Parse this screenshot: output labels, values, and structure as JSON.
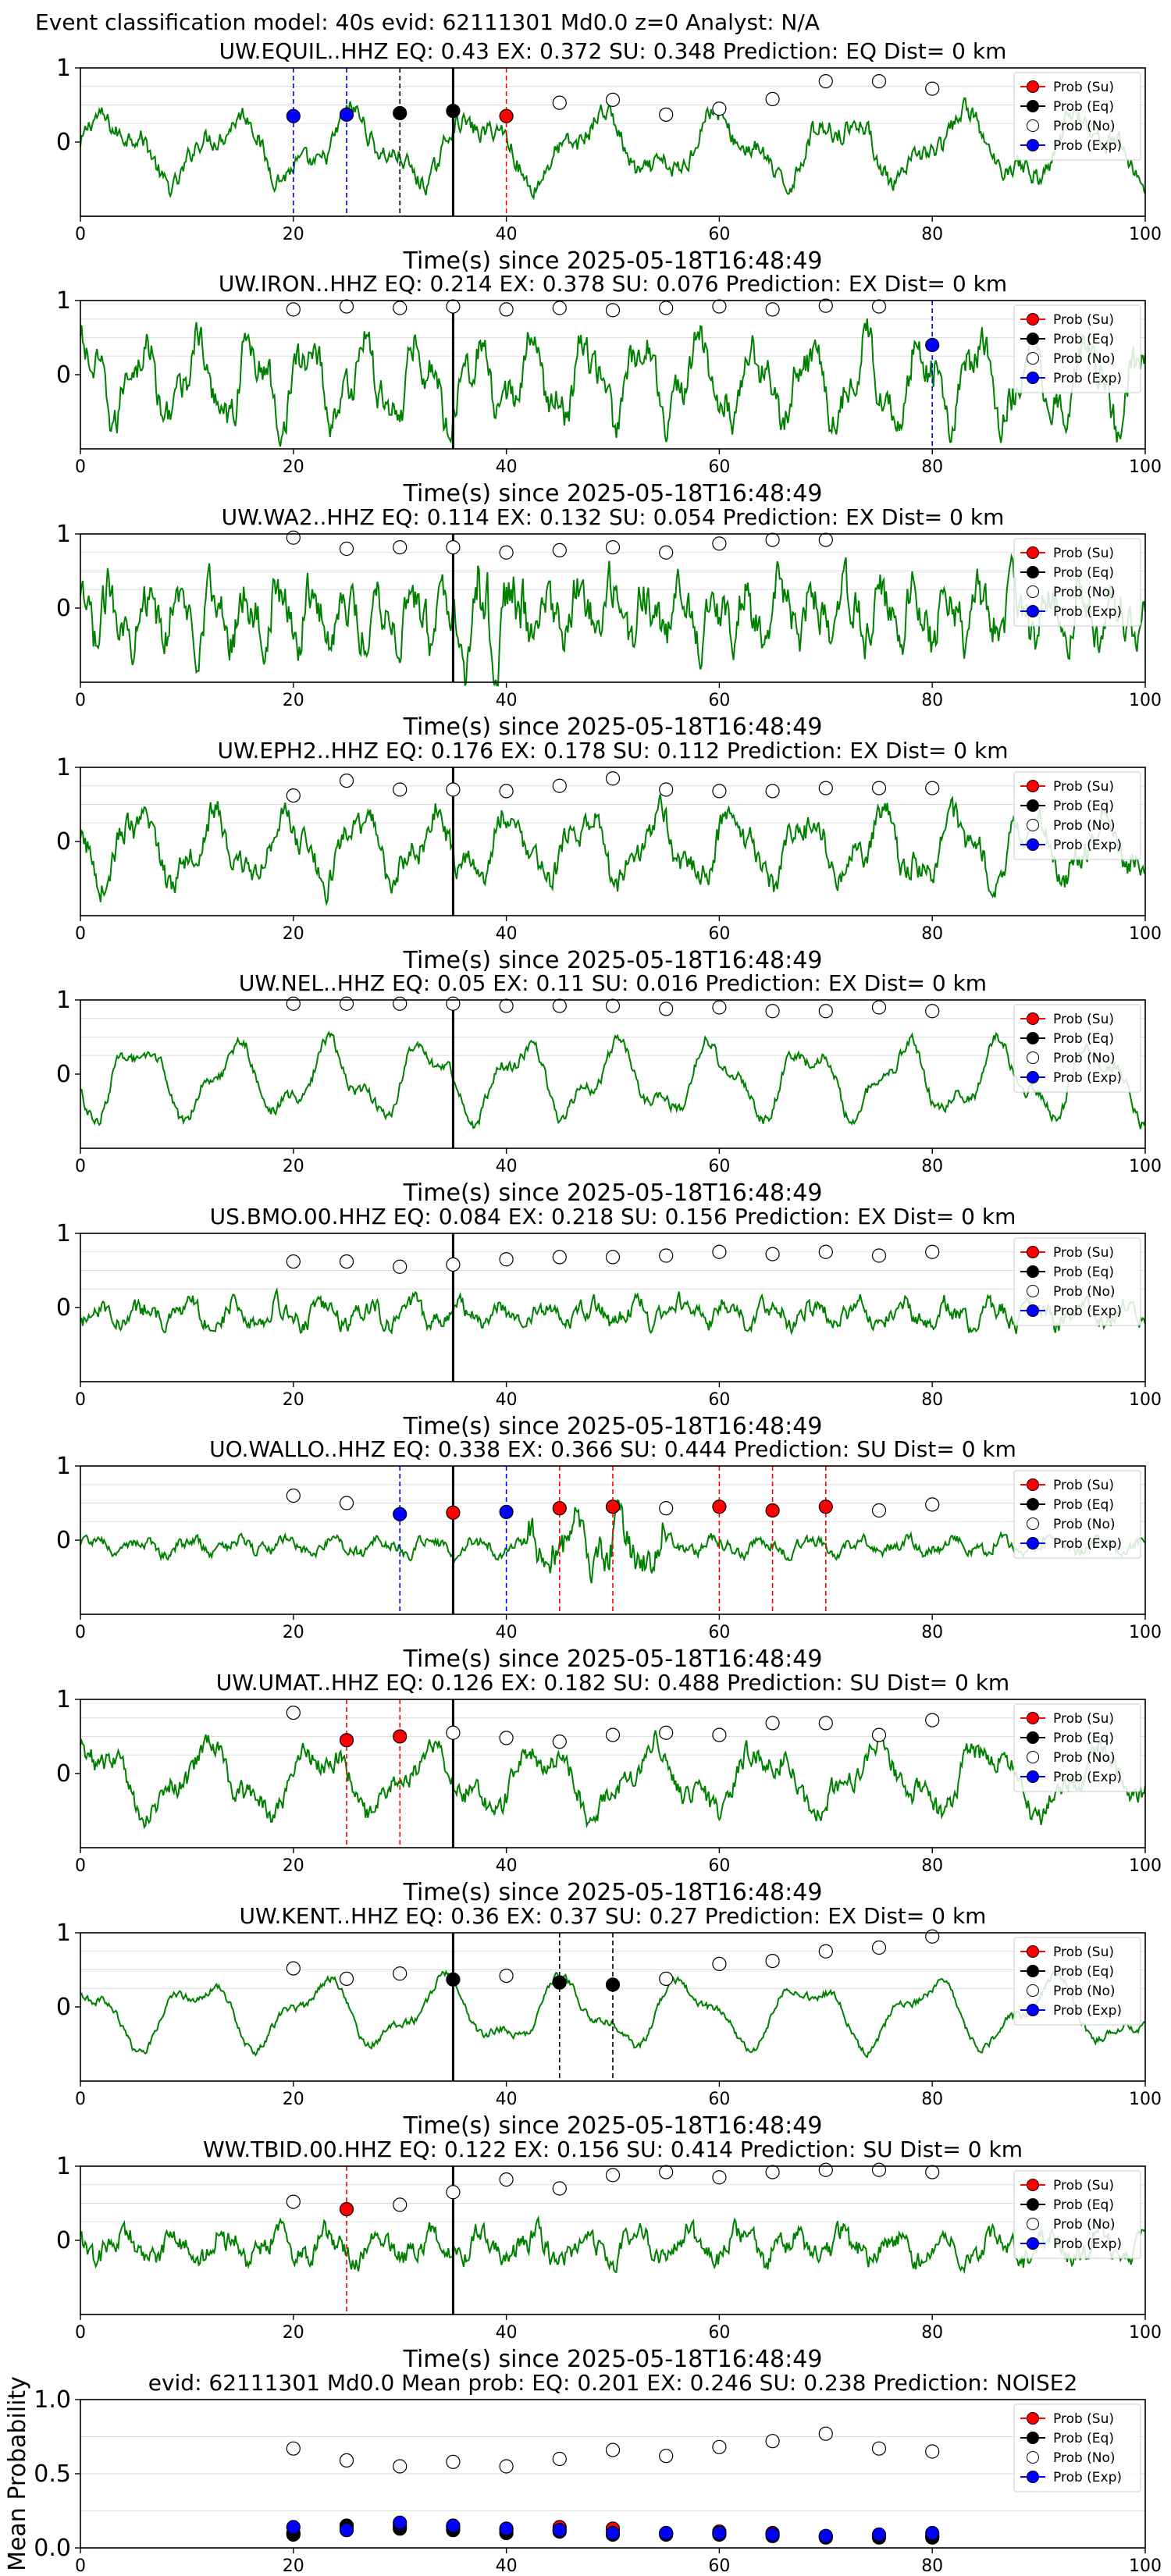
{
  "figure_title": "Event classification model: 40s evid: 62111301 Md0.0 z=0 Analyst: N/A",
  "legend_labels": [
    "Prob (Su)",
    "Prob (Eq)",
    "Prob (No)",
    "Prob (Exp)"
  ],
  "colors": {
    "waveform": "#008000",
    "su": "#ff0000",
    "eq": "#000000",
    "no": "#ffffff",
    "exp": "#0000ff",
    "ex_line": "#0000ff",
    "su_line": "#ff0000",
    "eq_line": "#000000",
    "grid": "#dddddd"
  },
  "chart_data": [
    {
      "type": "line",
      "station": "UW.EQUIL..HHZ",
      "title": "UW.EQUIL..HHZ    EQ: 0.43   EX: 0.372   SU: 0.348    Prediction: EQ     Dist= 0 km",
      "xlabel": "Time(s) since 2025-05-18T16:48:49",
      "xlim": [
        0,
        100
      ],
      "ylim": [
        -1,
        1
      ],
      "yticks": [
        "1",
        "0"
      ],
      "xticks": [
        "0",
        "20",
        "40",
        "60",
        "80",
        "100"
      ],
      "origin_line": 35,
      "legend": "top-right",
      "prob": {
        "x": [
          20,
          25,
          30,
          35,
          40,
          45,
          50,
          55,
          60,
          65,
          70,
          75,
          80
        ],
        "class": [
          "exp",
          "exp",
          "eq",
          "eq",
          "su",
          "no",
          "no",
          "no",
          "no",
          "no",
          "no",
          "no",
          "no"
        ],
        "y": [
          0.35,
          0.37,
          0.39,
          0.42,
          0.35,
          0.53,
          0.57,
          0.37,
          0.45,
          0.58,
          0.82,
          0.82,
          0.72
        ]
      },
      "markers": [
        {
          "x": 20,
          "type": "exp"
        },
        {
          "x": 25,
          "type": "exp"
        },
        {
          "x": 30,
          "type": "eq"
        },
        {
          "x": 35,
          "type": "eq"
        },
        {
          "x": 40,
          "type": "su"
        }
      ]
    },
    {
      "type": "line",
      "station": "UW.IRON..HHZ",
      "title": "UW.IRON..HHZ    EQ: 0.214   EX: 0.378   SU: 0.076    Prediction: EX     Dist= 0 km",
      "xlabel": "Time(s) since 2025-05-18T16:48:49",
      "xlim": [
        0,
        100
      ],
      "ylim": [
        -1,
        1
      ],
      "yticks": [
        "1",
        "0"
      ],
      "xticks": [
        "0",
        "20",
        "40",
        "60",
        "80",
        "100"
      ],
      "origin_line": 35,
      "legend": "top-right",
      "prob": {
        "x": [
          20,
          25,
          30,
          35,
          40,
          45,
          50,
          55,
          60,
          65,
          70,
          75,
          80
        ],
        "class": [
          "no",
          "no",
          "no",
          "no",
          "no",
          "no",
          "no",
          "no",
          "no",
          "no",
          "no",
          "no",
          "exp"
        ],
        "y": [
          0.88,
          0.92,
          0.9,
          0.92,
          0.88,
          0.9,
          0.87,
          0.9,
          0.92,
          0.88,
          0.93,
          0.92,
          0.4
        ]
      },
      "markers": [
        {
          "x": 80,
          "type": "exp"
        }
      ]
    },
    {
      "type": "line",
      "station": "UW.WA2..HHZ",
      "title": "UW.WA2..HHZ    EQ: 0.114   EX: 0.132   SU: 0.054    Prediction: EX     Dist= 0 km",
      "xlabel": "Time(s) since 2025-05-18T16:48:49",
      "xlim": [
        0,
        100
      ],
      "ylim": [
        -1,
        1
      ],
      "yticks": [
        "1",
        "0"
      ],
      "xticks": [
        "0",
        "20",
        "40",
        "60",
        "80",
        "100"
      ],
      "origin_line": 35,
      "legend": "top-right",
      "prob": {
        "x": [
          20,
          25,
          30,
          35,
          40,
          45,
          50,
          55,
          60,
          65,
          70
        ],
        "class": [
          "no",
          "no",
          "no",
          "no",
          "no",
          "no",
          "no",
          "no",
          "no",
          "no",
          "no"
        ],
        "y": [
          0.95,
          0.8,
          0.82,
          0.82,
          0.75,
          0.78,
          0.82,
          0.75,
          0.87,
          0.92,
          0.92
        ]
      },
      "markers": []
    },
    {
      "type": "line",
      "station": "UW.EPH2..HHZ",
      "title": "UW.EPH2..HHZ    EQ: 0.176   EX: 0.178   SU: 0.112    Prediction: EX     Dist= 0 km",
      "xlabel": "Time(s) since 2025-05-18T16:48:49",
      "xlim": [
        0,
        100
      ],
      "ylim": [
        -1,
        1
      ],
      "yticks": [
        "1",
        "0"
      ],
      "xticks": [
        "0",
        "20",
        "40",
        "60",
        "80",
        "100"
      ],
      "origin_line": 35,
      "legend": "top-right",
      "prob": {
        "x": [
          20,
          25,
          30,
          35,
          40,
          45,
          50,
          55,
          60,
          65,
          70,
          75,
          80
        ],
        "class": [
          "no",
          "no",
          "no",
          "no",
          "no",
          "no",
          "no",
          "no",
          "no",
          "no",
          "no",
          "no",
          "no"
        ],
        "y": [
          0.62,
          0.82,
          0.7,
          0.7,
          0.68,
          0.75,
          0.85,
          0.7,
          0.68,
          0.68,
          0.72,
          0.72,
          0.72
        ]
      },
      "markers": []
    },
    {
      "type": "line",
      "station": "UW.NEL..HHZ",
      "title": "UW.NEL..HHZ    EQ: 0.05   EX: 0.11   SU: 0.016    Prediction: EX     Dist= 0 km",
      "xlabel": "Time(s) since 2025-05-18T16:48:49",
      "xlim": [
        0,
        100
      ],
      "ylim": [
        -1,
        1
      ],
      "yticks": [
        "1",
        "0"
      ],
      "xticks": [
        "0",
        "20",
        "40",
        "60",
        "80",
        "100"
      ],
      "origin_line": 35,
      "legend": "top-right",
      "prob": {
        "x": [
          20,
          25,
          30,
          35,
          40,
          45,
          50,
          55,
          60,
          65,
          70,
          75,
          80
        ],
        "class": [
          "no",
          "no",
          "no",
          "no",
          "no",
          "no",
          "no",
          "no",
          "no",
          "no",
          "no",
          "no",
          "no"
        ],
        "y": [
          0.95,
          0.95,
          0.95,
          0.95,
          0.92,
          0.92,
          0.92,
          0.88,
          0.9,
          0.85,
          0.85,
          0.9,
          0.85
        ]
      },
      "markers": []
    },
    {
      "type": "line",
      "station": "US.BMO.00.HHZ",
      "title": "US.BMO.00.HHZ    EQ: 0.084   EX: 0.218   SU: 0.156    Prediction: EX     Dist= 0 km",
      "xlabel": "Time(s) since 2025-05-18T16:48:49",
      "xlim": [
        0,
        100
      ],
      "ylim": [
        -1,
        1
      ],
      "yticks": [
        "1",
        "0"
      ],
      "xticks": [
        "0",
        "20",
        "40",
        "60",
        "80",
        "100"
      ],
      "origin_line": 35,
      "legend": "top-right",
      "prob": {
        "x": [
          20,
          25,
          30,
          35,
          40,
          45,
          50,
          55,
          60,
          65,
          70,
          75,
          80
        ],
        "class": [
          "no",
          "no",
          "no",
          "no",
          "no",
          "no",
          "no",
          "no",
          "no",
          "no",
          "no",
          "no",
          "no"
        ],
        "y": [
          0.62,
          0.62,
          0.55,
          0.58,
          0.65,
          0.68,
          0.68,
          0.7,
          0.75,
          0.72,
          0.75,
          0.7,
          0.75
        ]
      },
      "markers": []
    },
    {
      "type": "line",
      "station": "UO.WALLO..HHZ",
      "title": "UO.WALLO..HHZ    EQ: 0.338   EX: 0.366   SU: 0.444    Prediction: SU     Dist= 0 km",
      "xlabel": "Time(s) since 2025-05-18T16:48:49",
      "xlim": [
        0,
        100
      ],
      "ylim": [
        -1,
        1
      ],
      "yticks": [
        "1",
        "0"
      ],
      "xticks": [
        "0",
        "20",
        "40",
        "60",
        "80",
        "100"
      ],
      "origin_line": 35,
      "legend": "top-right",
      "prob": {
        "x": [
          20,
          25,
          30,
          35,
          40,
          45,
          50,
          55,
          60,
          65,
          70,
          75,
          80
        ],
        "class": [
          "no",
          "no",
          "exp",
          "su",
          "exp",
          "su",
          "su",
          "no",
          "su",
          "su",
          "su",
          "no",
          "no"
        ],
        "y": [
          0.6,
          0.5,
          0.35,
          0.37,
          0.38,
          0.43,
          0.45,
          0.43,
          0.45,
          0.4,
          0.45,
          0.4,
          0.48
        ]
      },
      "markers": [
        {
          "x": 30,
          "type": "exp"
        },
        {
          "x": 40,
          "type": "exp"
        },
        {
          "x": 45,
          "type": "su"
        },
        {
          "x": 50,
          "type": "su"
        },
        {
          "x": 60,
          "type": "su"
        },
        {
          "x": 65,
          "type": "su"
        },
        {
          "x": 70,
          "type": "su"
        }
      ]
    },
    {
      "type": "line",
      "station": "UW.UMAT..HHZ",
      "title": "UW.UMAT..HHZ    EQ: 0.126   EX: 0.182   SU: 0.488    Prediction: SU     Dist= 0 km",
      "xlabel": "Time(s) since 2025-05-18T16:48:49",
      "xlim": [
        0,
        100
      ],
      "ylim": [
        -1,
        1
      ],
      "yticks": [
        "1",
        "0"
      ],
      "xticks": [
        "0",
        "20",
        "40",
        "60",
        "80",
        "100"
      ],
      "origin_line": 35,
      "legend": "top-right",
      "prob": {
        "x": [
          20,
          25,
          30,
          35,
          40,
          45,
          50,
          55,
          60,
          65,
          70,
          75,
          80
        ],
        "class": [
          "no",
          "su",
          "su",
          "no",
          "no",
          "no",
          "no",
          "no",
          "no",
          "no",
          "no",
          "no",
          "no"
        ],
        "y": [
          0.82,
          0.45,
          0.5,
          0.55,
          0.48,
          0.43,
          0.52,
          0.55,
          0.52,
          0.68,
          0.68,
          0.52,
          0.72
        ]
      },
      "markers": [
        {
          "x": 25,
          "type": "su"
        },
        {
          "x": 30,
          "type": "su"
        }
      ]
    },
    {
      "type": "line",
      "station": "UW.KENT..HHZ",
      "title": "UW.KENT..HHZ    EQ: 0.36   EX: 0.37   SU: 0.27    Prediction: EX     Dist= 0 km",
      "xlabel": "Time(s) since 2025-05-18T16:48:49",
      "xlim": [
        0,
        100
      ],
      "ylim": [
        -1,
        1
      ],
      "yticks": [
        "1",
        "0"
      ],
      "xticks": [
        "0",
        "20",
        "40",
        "60",
        "80",
        "100"
      ],
      "origin_line": 35,
      "legend": "top-right",
      "prob": {
        "x": [
          20,
          25,
          30,
          35,
          40,
          45,
          50,
          55,
          60,
          65,
          70,
          75,
          80
        ],
        "class": [
          "no",
          "no",
          "no",
          "eq",
          "no",
          "eq",
          "eq",
          "no",
          "no",
          "no",
          "no",
          "no",
          "no"
        ],
        "y": [
          0.52,
          0.38,
          0.45,
          0.37,
          0.42,
          0.33,
          0.3,
          0.38,
          0.58,
          0.62,
          0.75,
          0.8,
          0.95
        ]
      },
      "markers": [
        {
          "x": 45,
          "type": "eq"
        },
        {
          "x": 50,
          "type": "eq"
        }
      ]
    },
    {
      "type": "line",
      "station": "WW.TBID.00.HHZ",
      "title": "WW.TBID.00.HHZ    EQ: 0.122   EX: 0.156   SU: 0.414    Prediction: SU     Dist= 0 km",
      "xlabel": "Time(s) since 2025-05-18T16:48:49",
      "xlim": [
        0,
        100
      ],
      "ylim": [
        -1,
        1
      ],
      "yticks": [
        "1",
        "0"
      ],
      "xticks": [
        "0",
        "20",
        "40",
        "60",
        "80",
        "100"
      ],
      "origin_line": 35,
      "legend": "top-right",
      "prob": {
        "x": [
          20,
          25,
          30,
          35,
          40,
          45,
          50,
          55,
          60,
          65,
          70,
          75,
          80
        ],
        "class": [
          "no",
          "su",
          "no",
          "no",
          "no",
          "no",
          "no",
          "no",
          "no",
          "no",
          "no",
          "no",
          "no"
        ],
        "y": [
          0.52,
          0.42,
          0.48,
          0.65,
          0.82,
          0.7,
          0.88,
          0.92,
          0.85,
          0.92,
          0.95,
          0.95,
          0.92
        ]
      },
      "markers": [
        {
          "x": 25,
          "type": "su"
        }
      ]
    },
    {
      "type": "scatter",
      "title": "evid: 62111301  Md0.0   Mean prob:   EQ: 0.201   EX: 0.246   SU: 0.238    Prediction: NOISE2",
      "ylabel": "Mean Probability",
      "xlim": [
        0,
        100
      ],
      "ylim": [
        0,
        1
      ],
      "yticks": [
        "1.0",
        "0.5",
        "0.0"
      ],
      "xticks": [
        "0",
        "20",
        "40",
        "60",
        "80",
        "100"
      ],
      "legend": "top-right",
      "x": [
        20,
        25,
        30,
        35,
        40,
        45,
        50,
        55,
        60,
        65,
        70,
        75,
        80
      ],
      "series": [
        {
          "name": "Prob (Su)",
          "values": [
            0.1,
            0.13,
            0.15,
            0.14,
            0.12,
            0.14,
            0.13,
            0.1,
            0.11,
            0.1,
            0.08,
            0.08,
            0.08
          ]
        },
        {
          "name": "Prob (Eq)",
          "values": [
            0.09,
            0.15,
            0.13,
            0.12,
            0.1,
            0.11,
            0.09,
            0.09,
            0.09,
            0.08,
            0.07,
            0.07,
            0.07
          ]
        },
        {
          "name": "Prob (No)",
          "values": [
            0.67,
            0.59,
            0.55,
            0.58,
            0.55,
            0.6,
            0.66,
            0.62,
            0.68,
            0.72,
            0.77,
            0.67,
            0.65
          ]
        },
        {
          "name": "Prob (Exp)",
          "values": [
            0.14,
            0.12,
            0.17,
            0.15,
            0.13,
            0.12,
            0.1,
            0.1,
            0.1,
            0.09,
            0.08,
            0.09,
            0.1
          ]
        }
      ]
    }
  ]
}
